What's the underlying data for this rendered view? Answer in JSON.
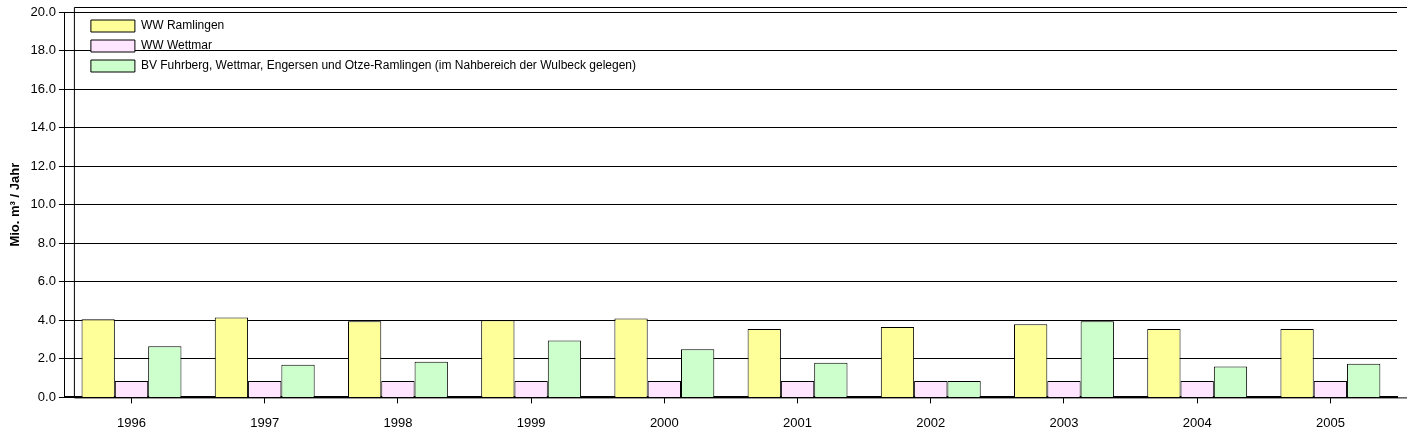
{
  "chart_data": {
    "type": "bar",
    "ylabel": "Mio. m³ / Jahr",
    "categories": [
      "1996",
      "1997",
      "1998",
      "1999",
      "2000",
      "2001",
      "2002",
      "2003",
      "2004",
      "2005"
    ],
    "series": [
      {
        "name": "WW Ramlingen",
        "color": "#ffff99",
        "values": [
          4.05,
          4.15,
          3.95,
          4.0,
          4.1,
          3.55,
          3.65,
          3.8,
          3.55,
          3.55
        ]
      },
      {
        "name": "WW Wettmar",
        "color": "#ffe5ff",
        "values": [
          0.85,
          0.85,
          0.85,
          0.85,
          0.85,
          0.85,
          0.85,
          0.85,
          0.85,
          0.85
        ]
      },
      {
        "name": "BV Fuhrberg, Wettmar, Engersen und Otze-Ramlingen (im Nahbereich der Wulbeck gelegen)",
        "color": "#ccffcc",
        "values": [
          2.65,
          1.7,
          1.85,
          2.95,
          2.5,
          1.8,
          0.85,
          3.95,
          1.6,
          1.75
        ]
      }
    ],
    "ylim": [
      0,
      20
    ],
    "yticks": [
      {
        "value": 0,
        "label": "0.0"
      },
      {
        "value": 2,
        "label": "2.0"
      },
      {
        "value": 4,
        "label": "4.0"
      },
      {
        "value": 6,
        "label": "6.0"
      },
      {
        "value": 8,
        "label": "8.0"
      },
      {
        "value": 10,
        "label": "10.0"
      },
      {
        "value": 12,
        "label": "12.0"
      },
      {
        "value": 14,
        "label": "14.0"
      },
      {
        "value": 16,
        "label": "16.0"
      },
      {
        "value": 18,
        "label": "18.0"
      },
      {
        "value": 20,
        "label": "20.0"
      }
    ],
    "grid": "y",
    "legend": "top left"
  }
}
